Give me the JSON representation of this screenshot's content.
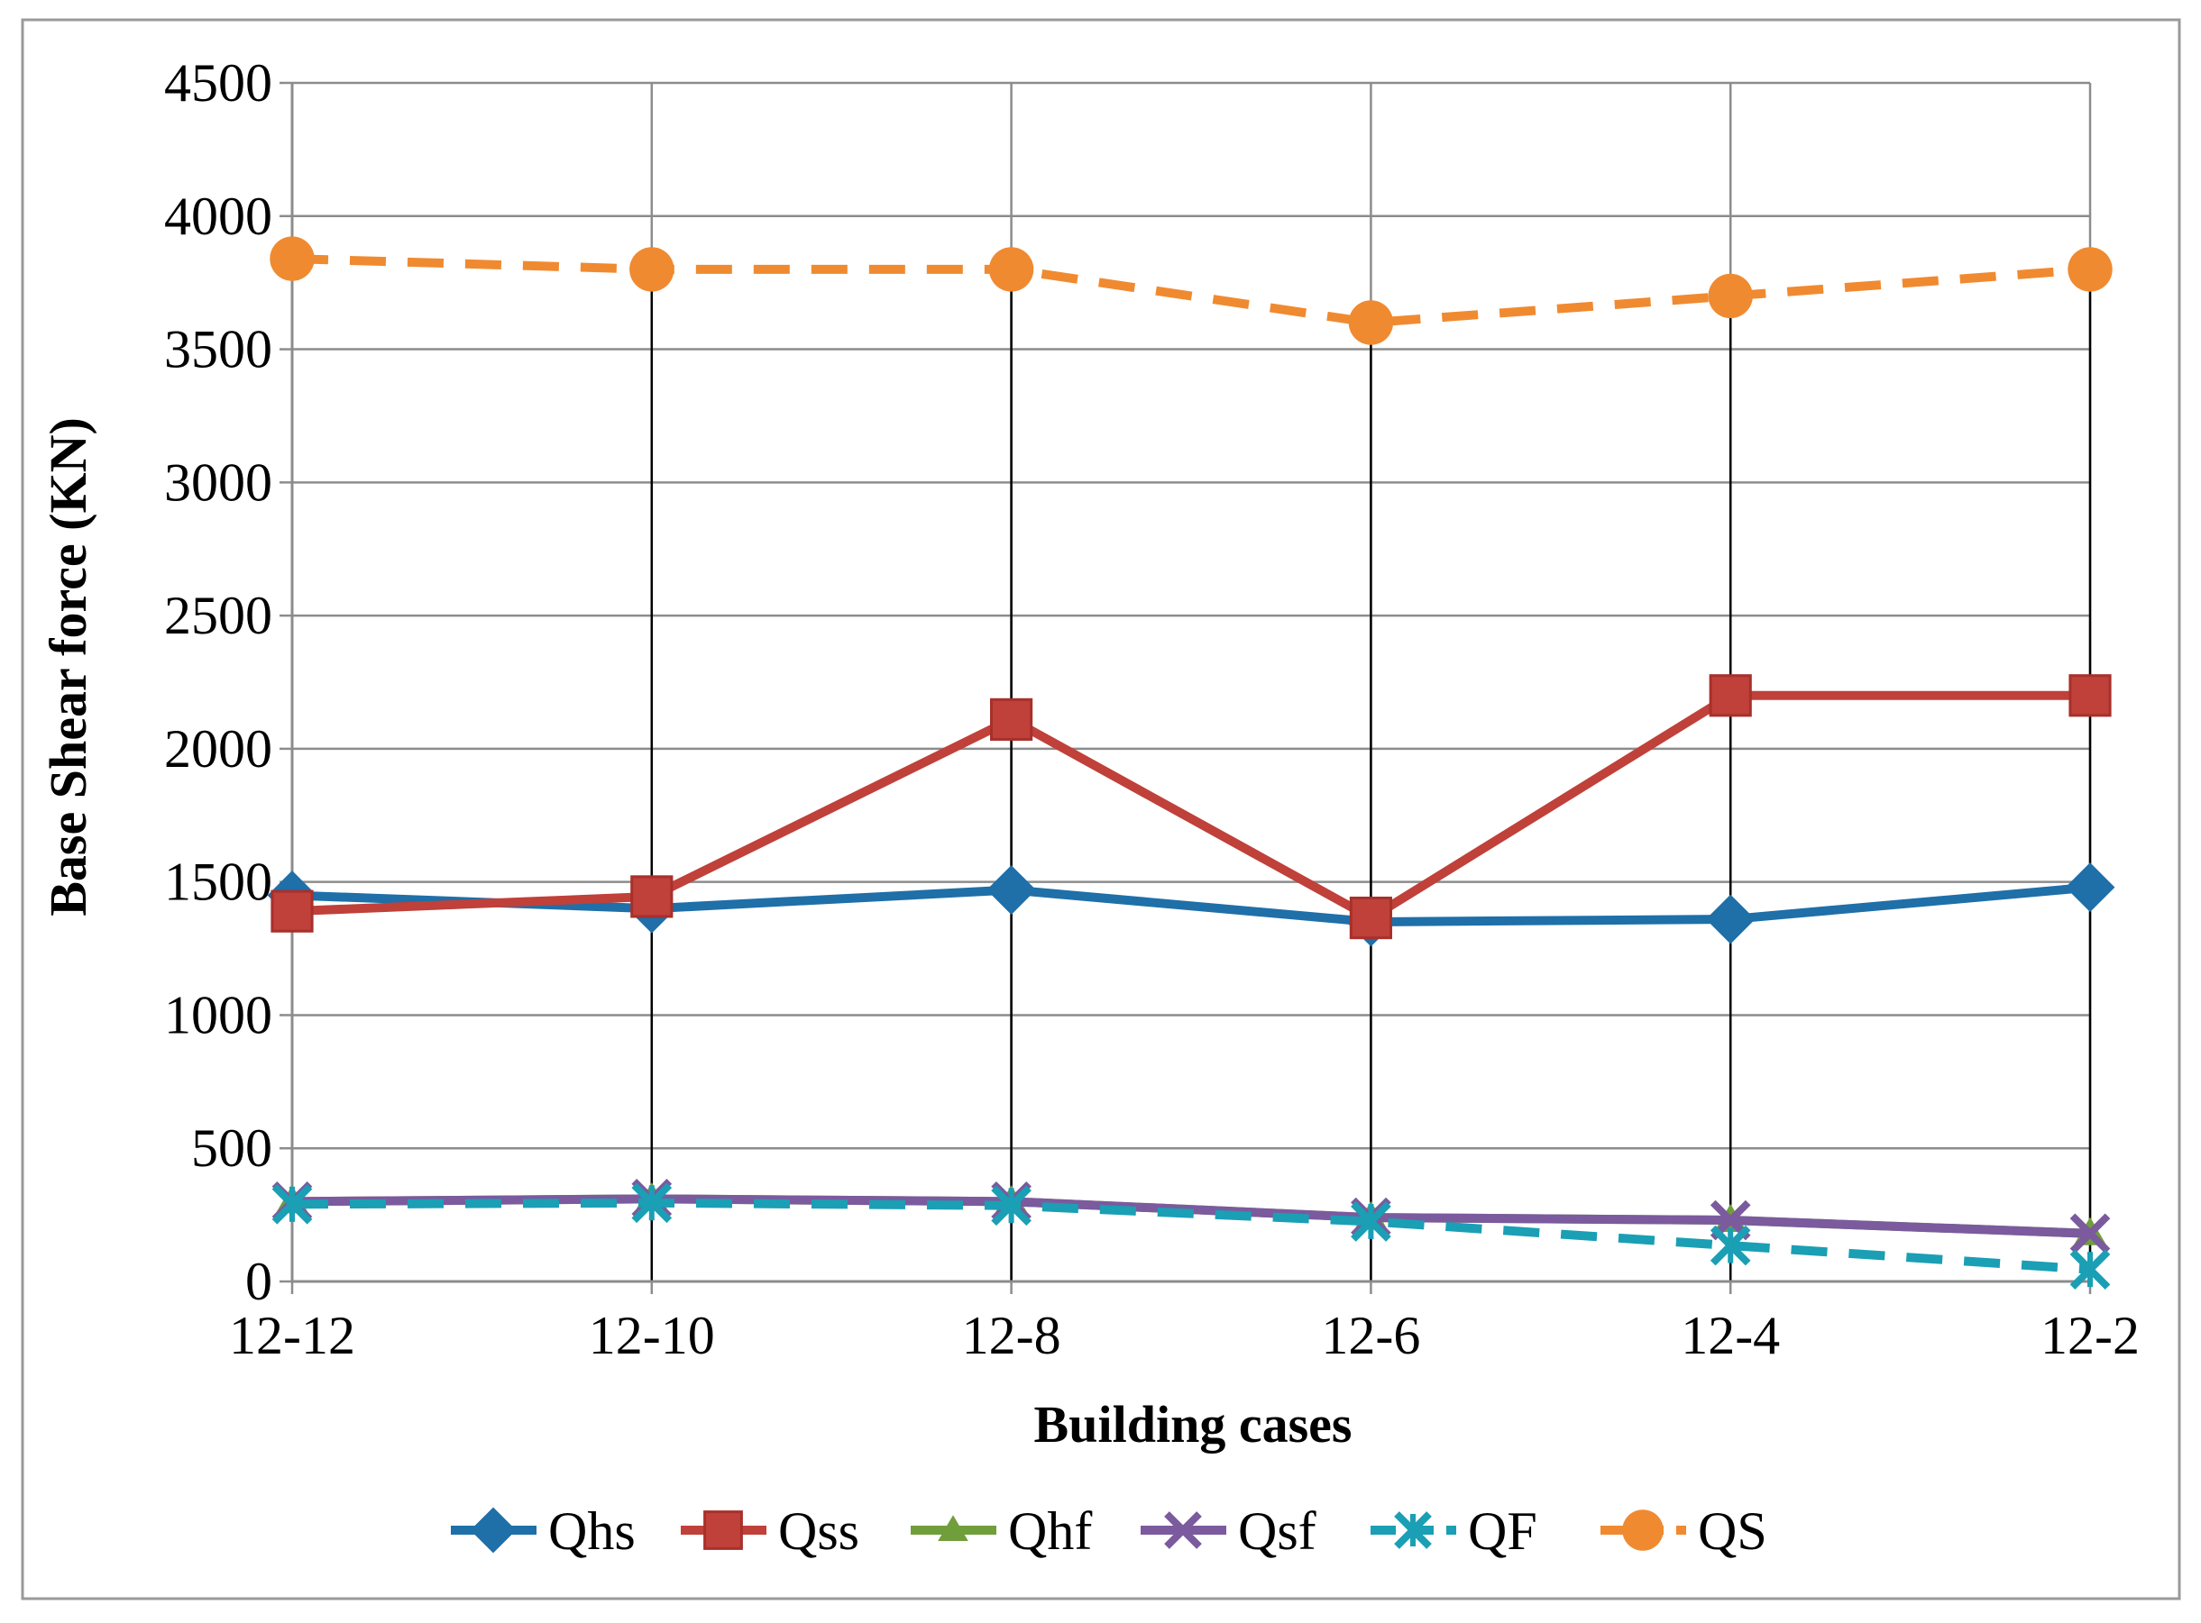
{
  "chart_data": {
    "type": "line",
    "title": "",
    "xlabel": "Building cases",
    "ylabel": "Base Shear force (KN)",
    "ylim": [
      0,
      4500
    ],
    "yticks": [
      0,
      500,
      1000,
      1500,
      2000,
      2500,
      3000,
      3500,
      4000,
      4500
    ],
    "categories": [
      "12-12",
      "12-10",
      "12-8",
      "12-6",
      "12-4",
      "12-2"
    ],
    "grid": true,
    "legend_position": "bottom",
    "series": [
      {
        "name": "Qhs",
        "values": [
          1450,
          1400,
          1470,
          1350,
          1360,
          1480
        ],
        "color": "#1f6fa8",
        "marker": "diamond",
        "dash": "solid"
      },
      {
        "name": "Qss",
        "values": [
          1390,
          1445,
          2110,
          1365,
          2200,
          2200
        ],
        "color": "#c0403a",
        "marker": "square",
        "dash": "solid"
      },
      {
        "name": "Qhf",
        "values": [
          300,
          310,
          300,
          240,
          230,
          180
        ],
        "color": "#6f9e3a",
        "marker": "triangle",
        "dash": "solid"
      },
      {
        "name": "Qsf",
        "values": [
          300,
          310,
          300,
          240,
          230,
          180
        ],
        "color": "#7b5a9e",
        "marker": "x",
        "dash": "solid"
      },
      {
        "name": "QF",
        "values": [
          290,
          295,
          285,
          225,
          135,
          45
        ],
        "color": "#1a9fb5",
        "marker": "star",
        "dash": "dashed"
      },
      {
        "name": "QS",
        "values": [
          3840,
          3800,
          3800,
          3600,
          3700,
          3800
        ],
        "color": "#f08a30",
        "marker": "circle",
        "dash": "dashed"
      }
    ],
    "drop_lines": true
  }
}
